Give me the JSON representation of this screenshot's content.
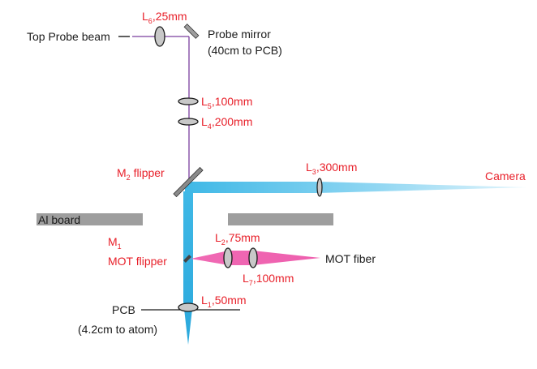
{
  "colors": {
    "probe_beam": "#7b3f9e",
    "camera_beam": "#4fc3ea",
    "mot_beam": "#ee6fb5",
    "label_red": "#e8202a",
    "label_black": "#1a1a1a",
    "optic_fill": "#c8c8c8",
    "board_gray": "#9e9e9e"
  },
  "labels": {
    "top_probe_beam": "Top Probe beam",
    "probe_mirror_line1": "Probe mirror",
    "probe_mirror_line2": "(40cm to PCB)",
    "l6": {
      "main": "L",
      "sub": "6",
      "rest": ",25mm"
    },
    "l5": {
      "main": "L",
      "sub": "5",
      "rest": ",100mm"
    },
    "l4": {
      "main": "L",
      "sub": "4",
      "rest": ",200mm"
    },
    "m2": {
      "main": "M",
      "sub": "2",
      "rest": " flipper"
    },
    "l3": {
      "main": "L",
      "sub": "3",
      "rest": ",300mm"
    },
    "camera": "Camera",
    "al_board": "Al board",
    "m1": {
      "main": "M",
      "sub": "1"
    },
    "mot_flipper": "MOT flipper",
    "l2": {
      "main": "L",
      "sub": "2",
      "rest": ",75mm"
    },
    "l7": {
      "main": "L",
      "sub": "7",
      "rest": ",100mm"
    },
    "mot_fiber": "MOT fiber",
    "l1": {
      "main": "L",
      "sub": "1",
      "rest": ",50mm"
    },
    "pcb_line1": "PCB",
    "pcb_line2": "(4.2cm to atom)"
  }
}
